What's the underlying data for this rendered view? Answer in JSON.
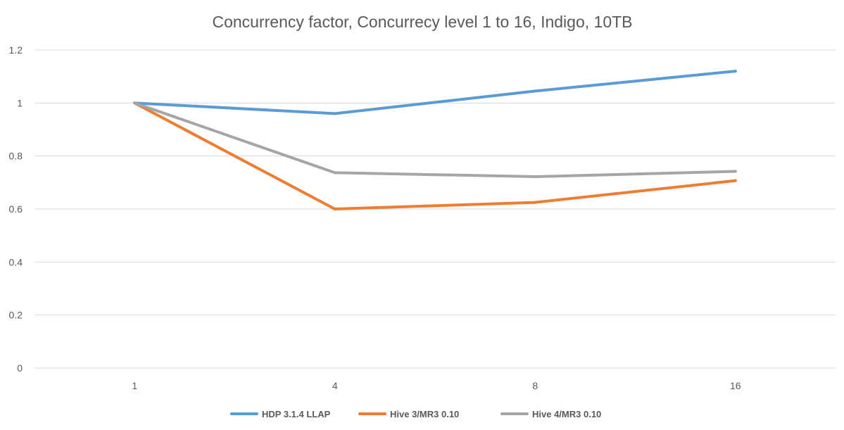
{
  "chart_data": {
    "type": "line",
    "title": "Concurrency factor, Concurrecy level 1 to 16, Indigo, 10TB",
    "xlabel": "",
    "ylabel": "",
    "categories": [
      "1",
      "4",
      "8",
      "16"
    ],
    "ylim": [
      0,
      1.2
    ],
    "y_ticks": [
      "0",
      "0.2",
      "0.4",
      "0.6",
      "0.8",
      "1",
      "1.2"
    ],
    "grid": "horizontal",
    "legend_position": "bottom",
    "series": [
      {
        "name": "HDP 3.1.4 LLAP",
        "color": "#5b9bd5",
        "values": [
          1.0,
          0.96,
          1.045,
          1.12
        ]
      },
      {
        "name": "Hive 3/MR3 0.10",
        "color": "#ed7d31",
        "values": [
          1.0,
          0.6,
          0.625,
          0.707
        ]
      },
      {
        "name": "Hive 4/MR3 0.10",
        "color": "#a5a5a5",
        "values": [
          1.0,
          0.737,
          0.722,
          0.742
        ]
      }
    ]
  }
}
